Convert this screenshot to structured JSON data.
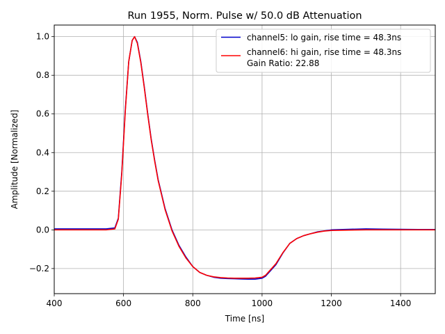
{
  "chart_data": {
    "type": "line",
    "title": "Run 1955, Norm. Pulse w/ 50.0 dB Attenuation",
    "xlabel": "Time [ns]",
    "ylabel": "Amplitude [Normalized]",
    "xlim": [
      400,
      1500
    ],
    "ylim": [
      -0.33,
      1.06
    ],
    "xticks": [
      400,
      600,
      800,
      1000,
      1200,
      1400
    ],
    "xtick_labels": [
      "400",
      "600",
      "800",
      "1000",
      "1200",
      "1400"
    ],
    "yticks": [
      -0.2,
      0.0,
      0.2,
      0.4,
      0.6,
      0.8,
      1.0
    ],
    "ytick_labels": [
      "−0.2",
      "0.0",
      "0.2",
      "0.4",
      "0.6",
      "0.8",
      "1.0"
    ],
    "grid": true,
    "legend_position": "top-right",
    "series": [
      {
        "name": "channel5: lo gain, rise time = 48.3ns",
        "color": "#0000cc",
        "x": [
          400,
          450,
          500,
          550,
          575,
          585,
          595,
          605,
          615,
          625,
          632,
          640,
          650,
          660,
          670,
          680,
          690,
          700,
          720,
          740,
          760,
          780,
          800,
          820,
          840,
          860,
          880,
          900,
          920,
          940,
          960,
          980,
          1000,
          1010,
          1020,
          1040,
          1060,
          1080,
          1100,
          1120,
          1140,
          1160,
          1180,
          1200,
          1250,
          1300,
          1350,
          1400,
          1450,
          1500
        ],
        "y": [
          0.005,
          0.005,
          0.005,
          0.005,
          0.01,
          0.06,
          0.3,
          0.62,
          0.87,
          0.98,
          1.0,
          0.97,
          0.87,
          0.74,
          0.6,
          0.47,
          0.36,
          0.26,
          0.11,
          0.0,
          -0.08,
          -0.14,
          -0.19,
          -0.22,
          -0.235,
          -0.245,
          -0.25,
          -0.252,
          -0.253,
          -0.254,
          -0.255,
          -0.255,
          -0.25,
          -0.24,
          -0.22,
          -0.18,
          -0.12,
          -0.07,
          -0.045,
          -0.03,
          -0.02,
          -0.01,
          -0.005,
          0.0,
          0.003,
          0.005,
          0.004,
          0.003,
          0.002,
          0.002
        ]
      },
      {
        "name": "channel6: hi gain, rise time = 48.3ns",
        "color": "#ff0000",
        "x": [
          400,
          450,
          500,
          550,
          575,
          585,
          595,
          605,
          615,
          625,
          632,
          640,
          650,
          660,
          670,
          680,
          690,
          700,
          720,
          740,
          760,
          780,
          800,
          820,
          840,
          860,
          880,
          900,
          920,
          940,
          960,
          980,
          1000,
          1010,
          1020,
          1040,
          1060,
          1080,
          1100,
          1120,
          1140,
          1160,
          1180,
          1200,
          1250,
          1300,
          1350,
          1400,
          1450,
          1500
        ],
        "y": [
          0.0,
          0.0,
          0.0,
          0.0,
          0.005,
          0.055,
          0.29,
          0.61,
          0.87,
          0.98,
          1.0,
          0.965,
          0.865,
          0.735,
          0.595,
          0.465,
          0.355,
          0.255,
          0.105,
          -0.005,
          -0.085,
          -0.145,
          -0.19,
          -0.22,
          -0.235,
          -0.243,
          -0.247,
          -0.249,
          -0.25,
          -0.25,
          -0.25,
          -0.249,
          -0.245,
          -0.235,
          -0.215,
          -0.175,
          -0.118,
          -0.07,
          -0.045,
          -0.03,
          -0.02,
          -0.012,
          -0.006,
          -0.003,
          -0.001,
          0.0,
          0.0,
          0.0,
          0.0,
          0.0
        ]
      }
    ],
    "legend_extra": "Gain Ratio: 22.88"
  }
}
